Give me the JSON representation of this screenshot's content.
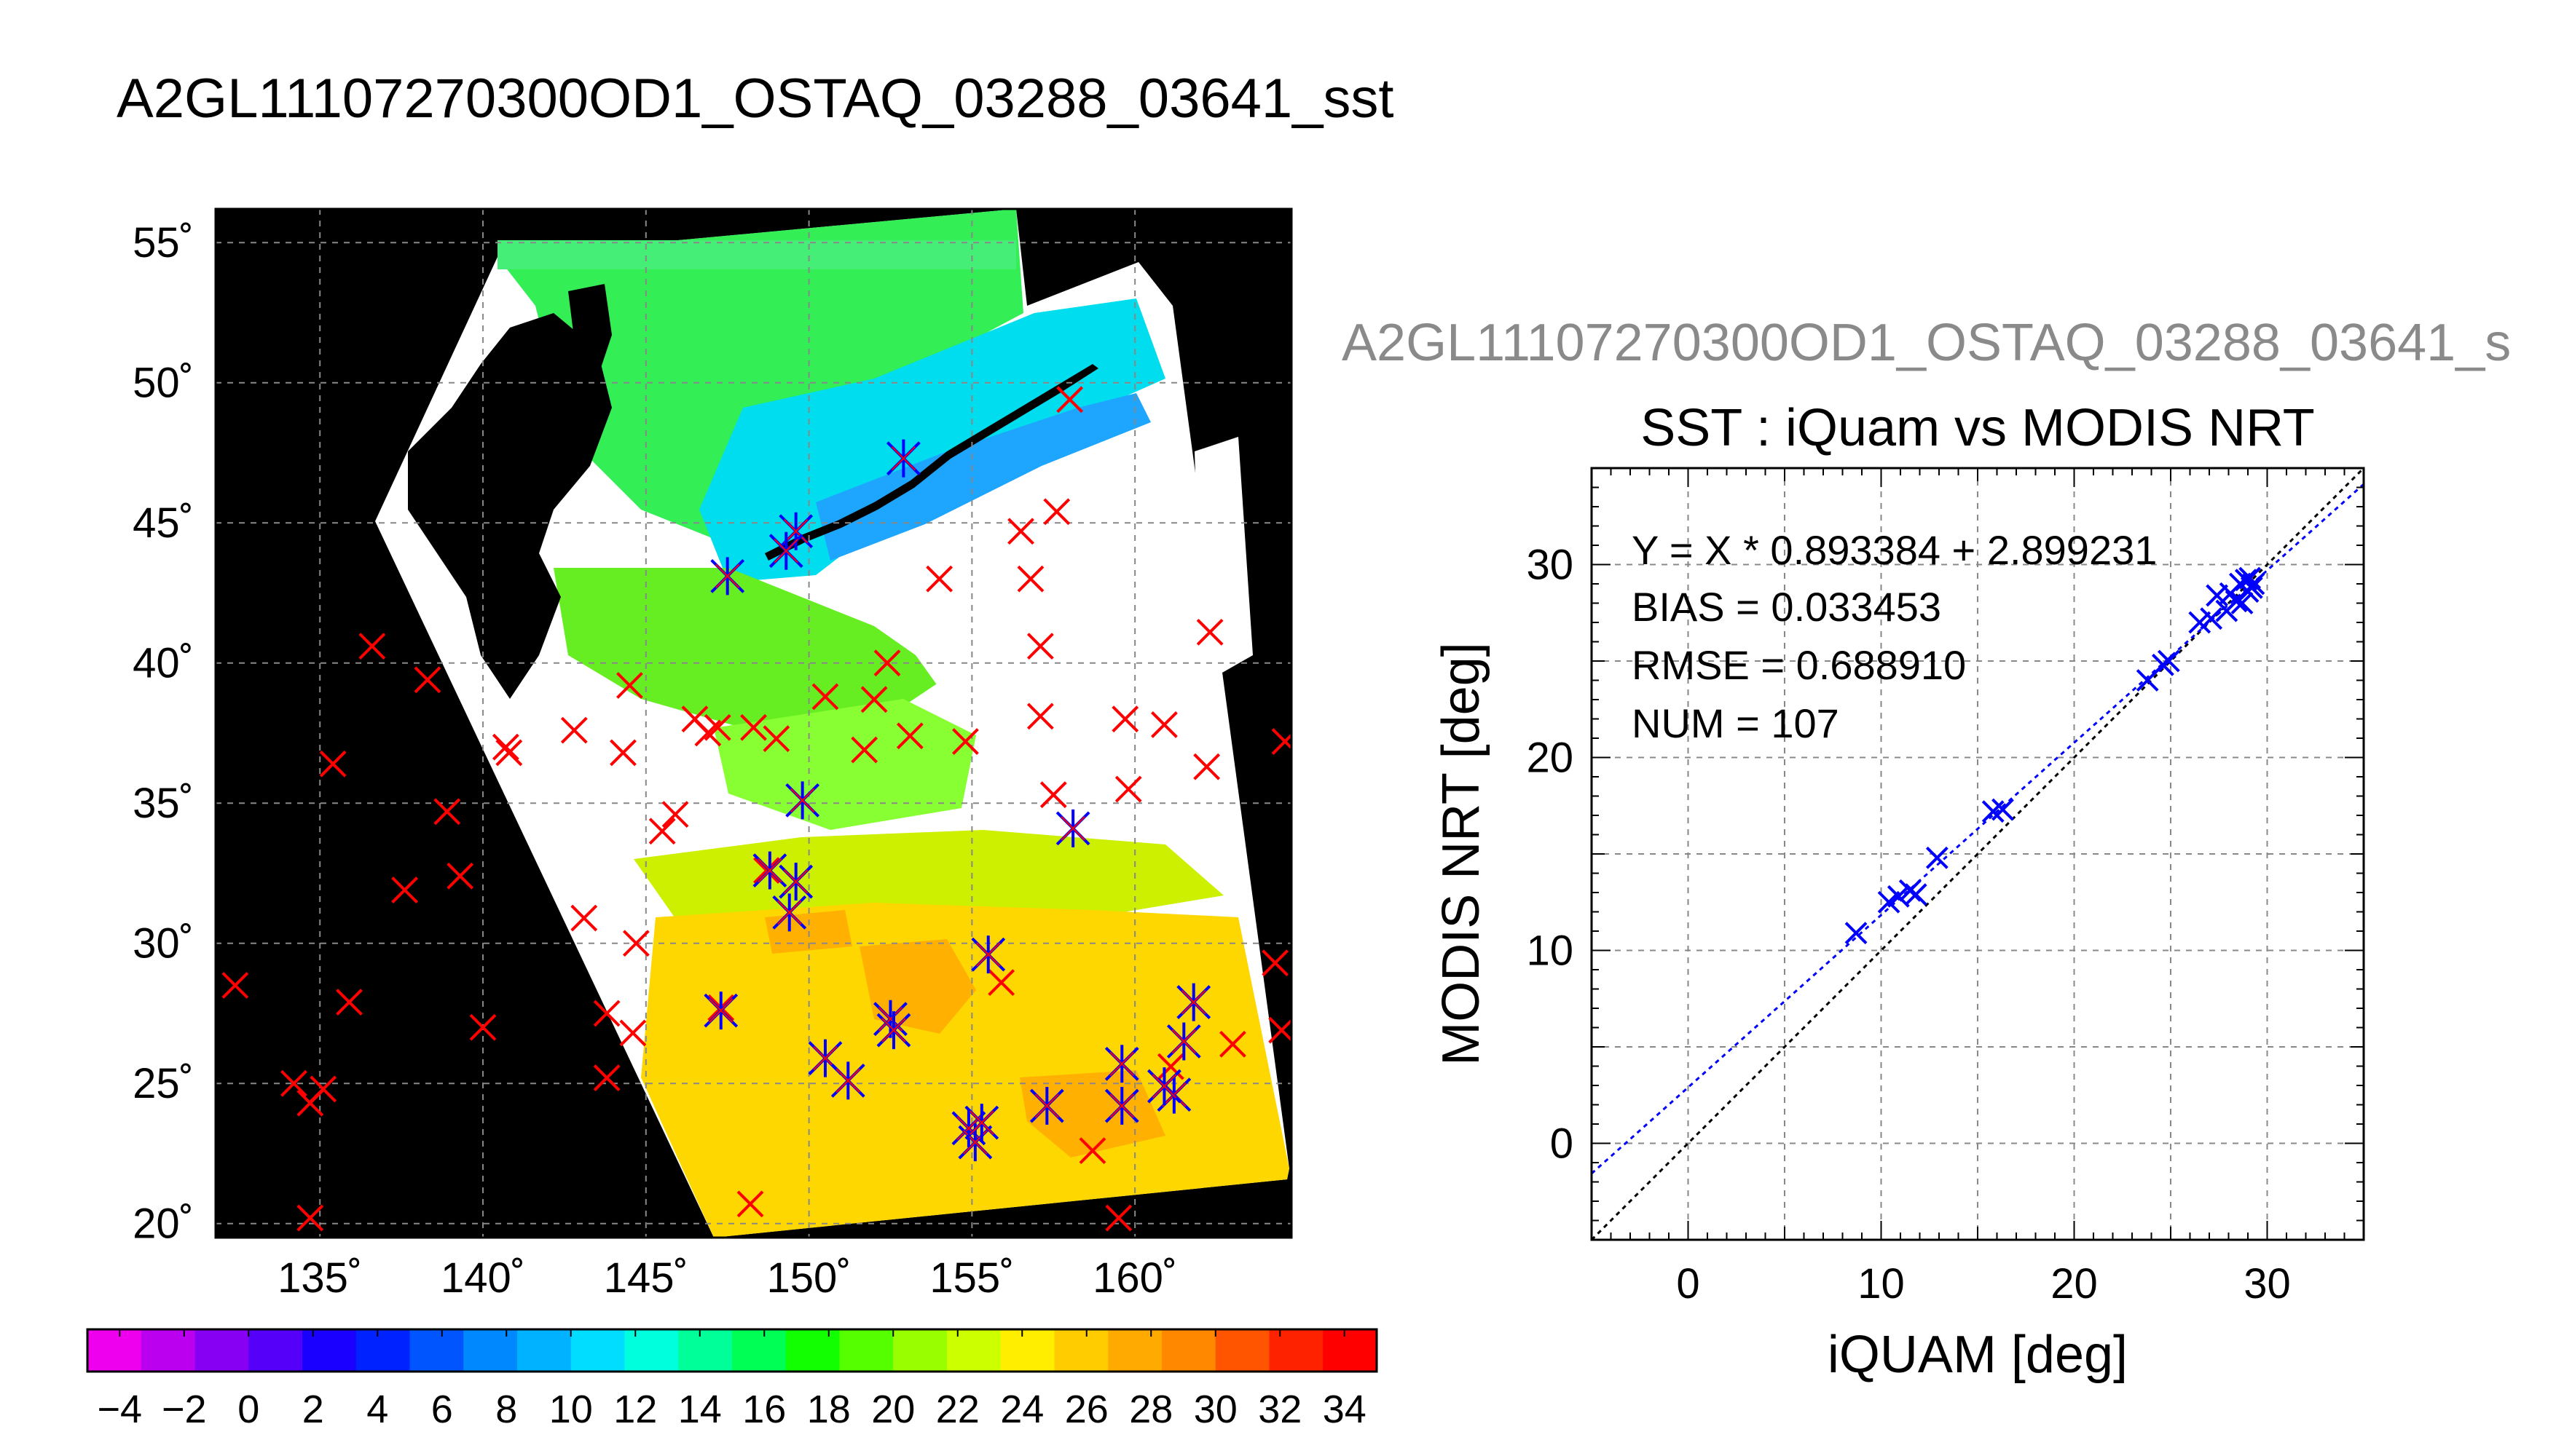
{
  "header": {
    "title": "A2GL11107270300OD1_OSTAQ_03288_03641_sst"
  },
  "map": {
    "lat_labels": [
      "55˚",
      "50˚",
      "45˚",
      "40˚",
      "35˚",
      "30˚",
      "25˚",
      "20˚"
    ],
    "lon_labels": [
      "135˚",
      "140˚",
      "145˚",
      "150˚",
      "155˚",
      "160˚"
    ],
    "lat_range": [
      19.5,
      56.2
    ],
    "lon_range": [
      131.8,
      164.8
    ],
    "colors": {
      "land": "#000000",
      "cloud": "#ffffff",
      "iquam_marker": "#ff0000",
      "match_marker": "#0000ff"
    }
  },
  "colorbar": {
    "ticks": [
      "−4",
      "−2",
      "0",
      "2",
      "4",
      "6",
      "8",
      "10",
      "12",
      "14",
      "16",
      "18",
      "20",
      "22",
      "24",
      "26",
      "28",
      "30",
      "32",
      "34"
    ],
    "colors": [
      "#ee00ee",
      "#bb00f0",
      "#8800f4",
      "#5500f8",
      "#1a00ff",
      "#0022ff",
      "#0055ff",
      "#0088ff",
      "#00b2ff",
      "#00ddff",
      "#00ffdd",
      "#00ff99",
      "#00ff55",
      "#11ff00",
      "#55ff00",
      "#99ff00",
      "#ccff00",
      "#ffee00",
      "#ffcc00",
      "#ffaa00",
      "#ff8800",
      "#ff5500",
      "#ff2200",
      "#ff0000"
    ]
  },
  "scatter": {
    "subtitle": "A2GL11107270300OD1_OSTAQ_03288_03641_s",
    "stats": {
      "fit": "Y = X * 0.893384 + 2.899231",
      "bias": "BIAS = 0.033453",
      "rmse": "RMSE = 0.688910",
      "num": "NUM = 107"
    }
  },
  "chart_data": {
    "type": "scatter",
    "title": "SST : iQuam vs MODIS NRT",
    "xlabel": "iQUAM [deg]",
    "ylabel": "MODIS NRT [deg]",
    "xlim": [
      -5,
      35
    ],
    "ylim": [
      -5,
      35
    ],
    "xticks": [
      "0",
      "10",
      "20",
      "30"
    ],
    "yticks": [
      "0",
      "10",
      "20",
      "30"
    ],
    "grid": true,
    "fit": {
      "slope": 0.893384,
      "intercept": 2.899231,
      "color": "#0000ff"
    },
    "identity_line": {
      "color": "#000000"
    },
    "points": [
      [
        8.7,
        10.9
      ],
      [
        10.4,
        12.5
      ],
      [
        10.9,
        12.8
      ],
      [
        11.5,
        13.1
      ],
      [
        11.8,
        12.9
      ],
      [
        12.9,
        14.8
      ],
      [
        15.8,
        17.2
      ],
      [
        16.3,
        17.3
      ],
      [
        23.8,
        24.0
      ],
      [
        24.6,
        24.8
      ],
      [
        24.9,
        25.0
      ],
      [
        26.5,
        27.0
      ],
      [
        27.1,
        27.2
      ],
      [
        27.4,
        28.4
      ],
      [
        27.9,
        27.6
      ],
      [
        28.1,
        28.5
      ],
      [
        28.4,
        28.1
      ],
      [
        28.6,
        29.0
      ],
      [
        28.7,
        28.0
      ],
      [
        28.9,
        29.2
      ],
      [
        29.0,
        28.6
      ],
      [
        29.1,
        29.3
      ],
      [
        29.2,
        28.8
      ],
      [
        29.3,
        29.0
      ]
    ],
    "color": "#0000ff"
  }
}
